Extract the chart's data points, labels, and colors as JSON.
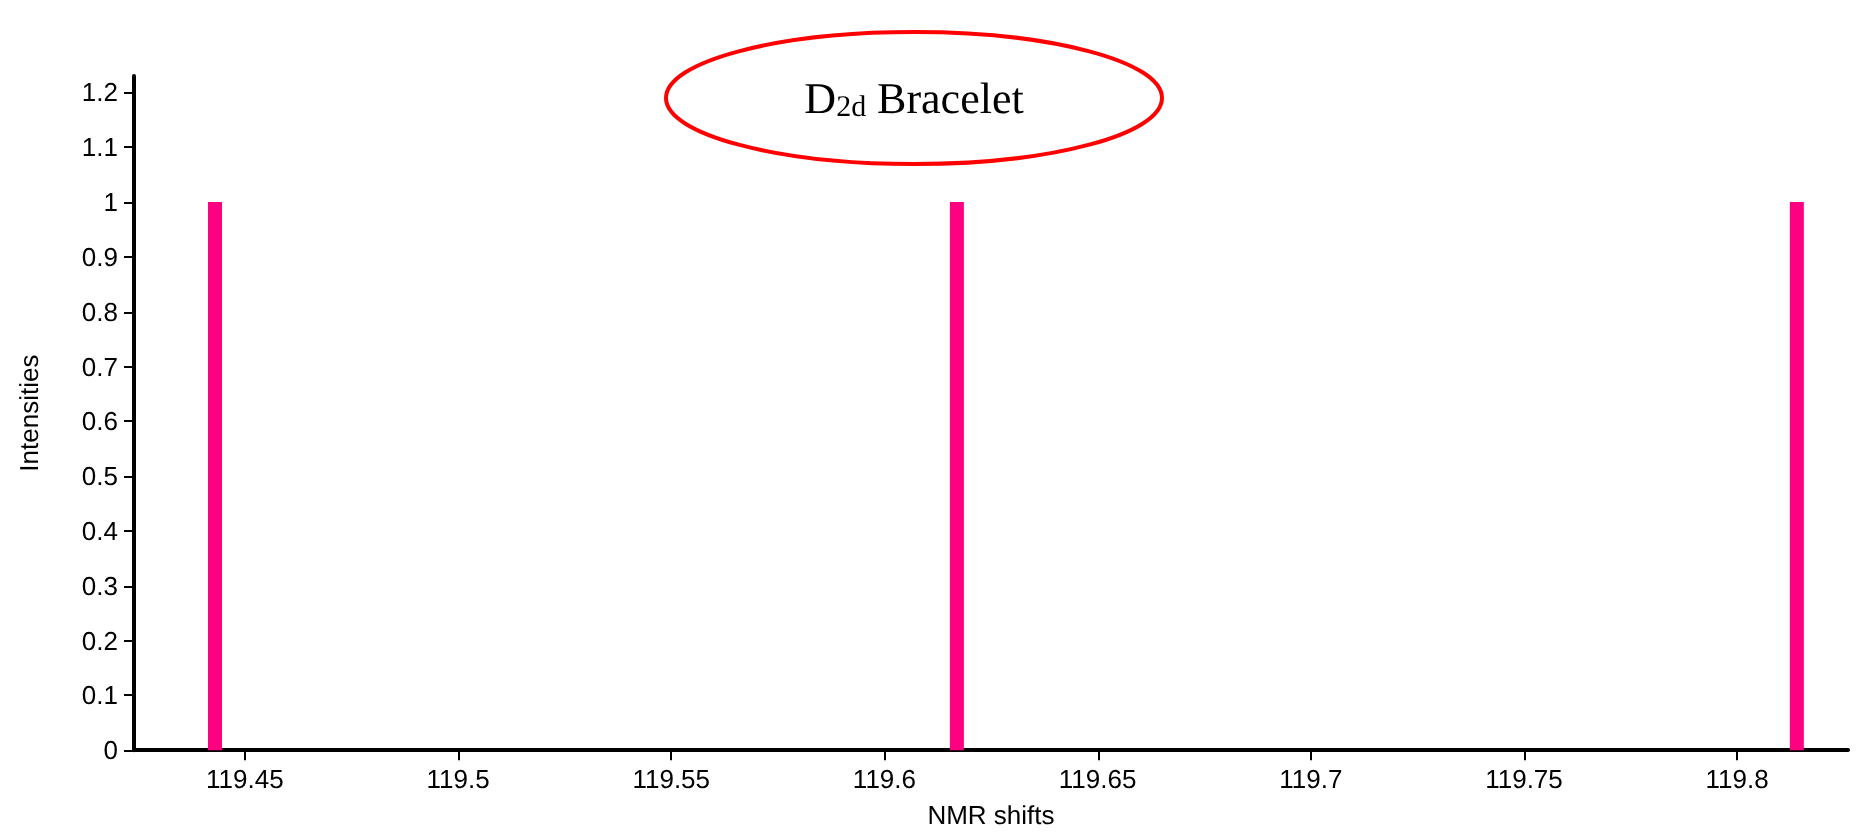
{
  "chart_data": {
    "type": "bar",
    "title": "D$_{2d}$ Bracelet",
    "xlabel": "NMR shifts",
    "ylabel": "Intensities",
    "x": [
      119.443,
      119.617,
      119.814
    ],
    "values": [
      1,
      1,
      1
    ],
    "color": "#ff0080",
    "xlim": [
      119.424,
      119.826
    ],
    "xticks": [
      119.45,
      119.5,
      119.55,
      119.6,
      119.65,
      119.7,
      119.75,
      119.8
    ],
    "ylim": [
      0,
      1.23
    ],
    "yticks": [
      0,
      0.1,
      0.2,
      0.3,
      0.4,
      0.5,
      0.6,
      0.7,
      0.8,
      0.9,
      1,
      1.1,
      1.2
    ],
    "grid": false
  }
}
